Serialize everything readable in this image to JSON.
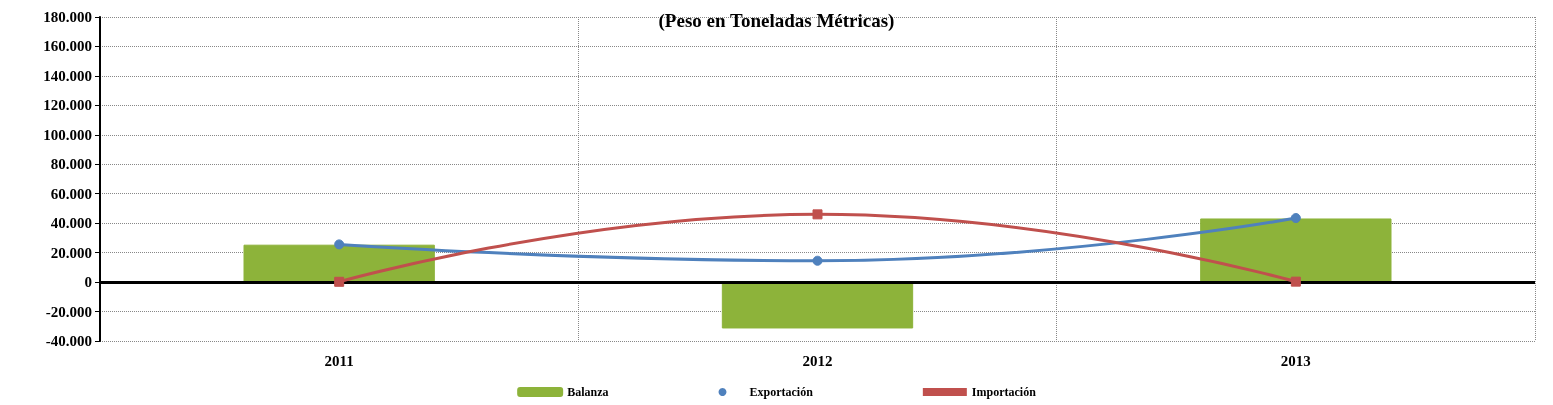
{
  "chart_data": {
    "type": "bar",
    "title": "(Peso en Toneladas Métricas)",
    "categories": [
      "2011",
      "2012",
      "2013"
    ],
    "series": [
      {
        "name": "Balanza",
        "color": "#8db33a",
        "values": [
          25400,
          -31500,
          43200
        ]
      },
      {
        "name": "Exportación",
        "type": "line",
        "color": "#4f81bd",
        "marker": "circle",
        "values": [
          25600,
          14500,
          43500
        ]
      },
      {
        "name": "Importación",
        "type": "line",
        "color": "#c0504d",
        "marker": "square",
        "values": [
          200,
          46000,
          300
        ]
      }
    ],
    "ylim": [
      -40000,
      180000
    ],
    "yticks": [
      {
        "value": -40000,
        "label": "-40.000"
      },
      {
        "value": -20000,
        "label": "-20.000"
      },
      {
        "value": 0,
        "label": "0"
      },
      {
        "value": 20000,
        "label": "20.000"
      },
      {
        "value": 40000,
        "label": "40.000"
      },
      {
        "value": 60000,
        "label": "60.000"
      },
      {
        "value": 80000,
        "label": "80.000"
      },
      {
        "value": 100000,
        "label": "100.000"
      },
      {
        "value": 120000,
        "label": "120.000"
      },
      {
        "value": 140000,
        "label": "140.000"
      },
      {
        "value": 160000,
        "label": "160.000"
      },
      {
        "value": 180000,
        "label": "180.000"
      }
    ],
    "ref_lines": [
      {
        "axis": "y",
        "value": 0,
        "color": "#000000"
      }
    ],
    "grid": true,
    "legend": "bottom"
  }
}
